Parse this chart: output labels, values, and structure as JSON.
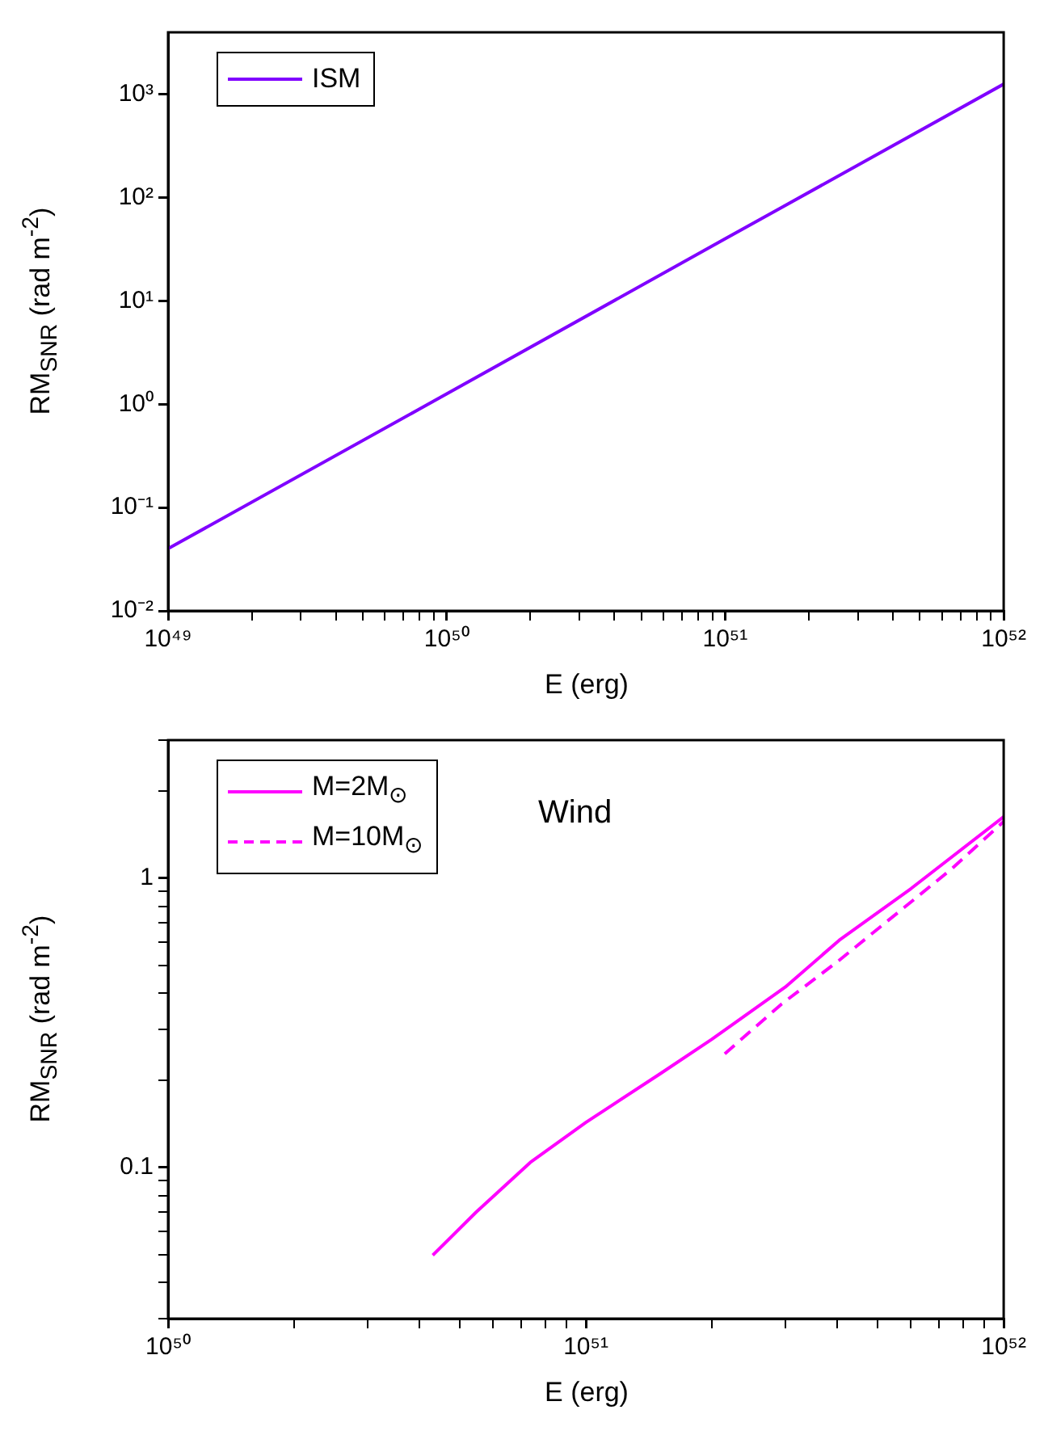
{
  "chart_data": [
    {
      "type": "line",
      "xlabel": "E (erg)",
      "ylabel": "RM$_{SNR}$ (rad m$^{-2}$)",
      "log": "xy",
      "grid": false,
      "legend": "top left",
      "line_style": "solid",
      "marker": "none",
      "xlim": [
        1e+49,
        1e+52
      ],
      "ylim": [
        0.01,
        4000
      ],
      "xticks": [
        {
          "value": 1e+49,
          "label": "10⁴⁹"
        },
        {
          "value": 2e+49,
          "label": null
        },
        {
          "value": 3e+49,
          "label": null
        },
        {
          "value": 4e+49,
          "label": null
        },
        {
          "value": 5e+49,
          "label": null
        },
        {
          "value": 6e+49,
          "label": null
        },
        {
          "value": 7e+49,
          "label": null
        },
        {
          "value": 8e+49,
          "label": null
        },
        {
          "value": 9e+49,
          "label": null
        },
        {
          "value": 1e+50,
          "label": "10⁵⁰"
        },
        {
          "value": 2e+50,
          "label": null
        },
        {
          "value": 3e+50,
          "label": null
        },
        {
          "value": 4e+50,
          "label": null
        },
        {
          "value": 5e+50,
          "label": null
        },
        {
          "value": 6e+50,
          "label": null
        },
        {
          "value": 7e+50,
          "label": null
        },
        {
          "value": 8e+50,
          "label": null
        },
        {
          "value": 9e+50,
          "label": null
        },
        {
          "value": 1e+51,
          "label": "10⁵¹"
        },
        {
          "value": 2e+51,
          "label": null
        },
        {
          "value": 3e+51,
          "label": null
        },
        {
          "value": 4e+51,
          "label": null
        },
        {
          "value": 5e+51,
          "label": null
        },
        {
          "value": 6e+51,
          "label": null
        },
        {
          "value": 7e+51,
          "label": null
        },
        {
          "value": 8e+51,
          "label": null
        },
        {
          "value": 9e+51,
          "label": null
        },
        {
          "value": 1e+52,
          "label": "10⁵²"
        }
      ],
      "yticks": [
        {
          "value": 0.01,
          "label": "10⁻²"
        },
        {
          "value": 0.1,
          "label": "10⁻¹"
        },
        {
          "value": 1,
          "label": "10⁰"
        },
        {
          "value": 10,
          "label": "10¹"
        },
        {
          "value": 100,
          "label": "10²"
        },
        {
          "value": 1000,
          "label": "10³"
        }
      ],
      "series": [
        {
          "name": "ISM",
          "color": "#8000ff",
          "x": [
            1e+49,
            1e+50,
            1e+51,
            1e+52
          ],
          "values": [
            0.04,
            1.26,
            40,
            1260
          ]
        }
      ]
    },
    {
      "type": "line",
      "xlabel": "E (erg)",
      "ylabel": "RM$_{SNR}$ (rad m$^{-2}$)",
      "log": "xy",
      "grid": false,
      "legend": "top left",
      "marker": "none",
      "xlim": [
        1e+50,
        1e+52
      ],
      "ylim": [
        0.03,
        3
      ],
      "annotations": [
        "Wind"
      ],
      "xticks": [
        {
          "value": 1e+50,
          "label": "10⁵⁰"
        },
        {
          "value": 2e+50,
          "label": null
        },
        {
          "value": 3e+50,
          "label": null
        },
        {
          "value": 4e+50,
          "label": null
        },
        {
          "value": 5e+50,
          "label": null
        },
        {
          "value": 6e+50,
          "label": null
        },
        {
          "value": 7e+50,
          "label": null
        },
        {
          "value": 8e+50,
          "label": null
        },
        {
          "value": 9e+50,
          "label": null
        },
        {
          "value": 1e+51,
          "label": "10⁵¹"
        },
        {
          "value": 2e+51,
          "label": null
        },
        {
          "value": 3e+51,
          "label": null
        },
        {
          "value": 4e+51,
          "label": null
        },
        {
          "value": 5e+51,
          "label": null
        },
        {
          "value": 6e+51,
          "label": null
        },
        {
          "value": 7e+51,
          "label": null
        },
        {
          "value": 8e+51,
          "label": null
        },
        {
          "value": 9e+51,
          "label": null
        },
        {
          "value": 1e+52,
          "label": "10⁵²"
        }
      ],
      "yticks": [
        {
          "value": 0.03,
          "label": null
        },
        {
          "value": 0.04,
          "label": null
        },
        {
          "value": 0.05,
          "label": null
        },
        {
          "value": 0.06,
          "label": null
        },
        {
          "value": 0.07,
          "label": null
        },
        {
          "value": 0.08,
          "label": null
        },
        {
          "value": 0.09,
          "label": null
        },
        0.1,
        {
          "value": 0.2,
          "label": null
        },
        {
          "value": 0.3,
          "label": null
        },
        {
          "value": 0.4,
          "label": null
        },
        {
          "value": 0.5,
          "label": null
        },
        {
          "value": 0.6,
          "label": null
        },
        {
          "value": 0.7,
          "label": null
        },
        {
          "value": 0.8,
          "label": null
        },
        {
          "value": 0.9,
          "label": null
        },
        1,
        {
          "value": 2,
          "label": null
        },
        {
          "value": 3,
          "label": null
        }
      ],
      "series": [
        {
          "name": "M=2M$_{⊙}$",
          "color": "#ff00ff",
          "line_style": "solid",
          "x": [
            4.3e+50,
            5.46e+50,
            7.36e+50,
            1e+51,
            1.5e+51,
            2e+51,
            3e+51,
            4.04e+51,
            6e+51,
            1e+52
          ],
          "values": [
            0.0497,
            0.07,
            0.104,
            0.143,
            0.21,
            0.277,
            0.42,
            0.61,
            0.92,
            1.63
          ]
        },
        {
          "name": "M=10M$_{⊙}$",
          "color": "#ff00ff",
          "line_style": "dashed",
          "x": [
            2.15e+51,
            2.94e+51,
            4.04e+51,
            5.14e+51,
            7.47e+51,
            1e+52
          ],
          "values": [
            0.247,
            0.367,
            0.52,
            0.69,
            1.07,
            1.57
          ]
        }
      ]
    }
  ]
}
